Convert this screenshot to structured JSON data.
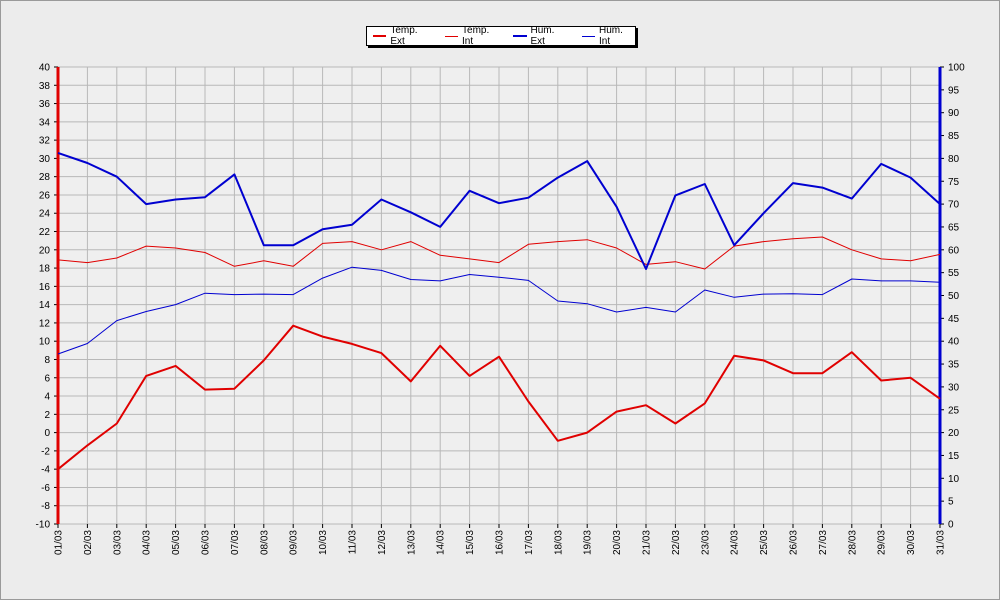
{
  "chart_data": {
    "type": "line",
    "categories": [
      "01/03",
      "02/03",
      "03/03",
      "04/03",
      "05/03",
      "06/03",
      "07/03",
      "08/03",
      "09/03",
      "10/03",
      "11/03",
      "12/03",
      "13/03",
      "14/03",
      "15/03",
      "16/03",
      "17/03",
      "18/03",
      "19/03",
      "20/03",
      "21/03",
      "22/03",
      "23/03",
      "24/03",
      "25/03",
      "26/03",
      "27/03",
      "28/03",
      "29/03",
      "30/03",
      "31/03"
    ],
    "ylim_left": [
      -10,
      40
    ],
    "ylim_right": [
      0,
      100
    ],
    "yticks_left": [
      -10,
      -8,
      -6,
      -4,
      -2,
      0,
      2,
      4,
      6,
      8,
      10,
      12,
      14,
      16,
      18,
      20,
      22,
      24,
      26,
      28,
      30,
      32,
      34,
      36,
      38,
      40
    ],
    "yticks_right": [
      0,
      5,
      10,
      15,
      20,
      25,
      30,
      35,
      40,
      45,
      50,
      55,
      60,
      65,
      70,
      75,
      80,
      85,
      90,
      95,
      100
    ],
    "grid": true,
    "legend_position": "top-center",
    "series": [
      {
        "name": "Temp. Ext",
        "axis": "left",
        "color": "#e00000",
        "width": 2,
        "values": [
          -4,
          -1.4,
          1,
          6.2,
          7.3,
          4.7,
          4.8,
          7.9,
          11.7,
          10.5,
          9.7,
          8.7,
          5.6,
          9.5,
          6.2,
          8.3,
          3.4,
          -0.9,
          0,
          2.3,
          3,
          1,
          3.2,
          8.4,
          7.9,
          6.5,
          6.5,
          8.8,
          5.7,
          6,
          3.7
        ]
      },
      {
        "name": "Temp. Int",
        "axis": "left",
        "color": "#e00000",
        "width": 1,
        "values": [
          18.9,
          18.6,
          19.1,
          20.4,
          20.2,
          19.7,
          18.2,
          18.8,
          18.2,
          20.7,
          20.9,
          20,
          20.9,
          19.4,
          19,
          18.6,
          20.6,
          20.9,
          21.1,
          20.2,
          18.4,
          18.7,
          17.9,
          20.4,
          20.9,
          21.2,
          21.4,
          20,
          19,
          18.8,
          19.5
        ]
      },
      {
        "name": "Hum. Ext",
        "axis": "right",
        "color": "#0000d0",
        "width": 2,
        "values": [
          81.2,
          79,
          76,
          70,
          71,
          71.5,
          76.5,
          61,
          61,
          64.5,
          65.5,
          71,
          68.2,
          65,
          72.9,
          70.2,
          71.4,
          75.8,
          79.4,
          69.4,
          55.8,
          71.9,
          74.4,
          61,
          68,
          74.6,
          73.6,
          71.2,
          78.8,
          75.8,
          70
        ]
      },
      {
        "name": "Hum. Int",
        "axis": "right",
        "color": "#0000d0",
        "width": 1,
        "values": [
          37.2,
          39.5,
          44.5,
          46.5,
          48,
          50.5,
          50.2,
          50.3,
          50.2,
          53.8,
          56.2,
          55.5,
          53.5,
          53.2,
          54.6,
          54,
          53.3,
          48.8,
          48.2,
          46.4,
          47.4,
          46.4,
          51.2,
          49.6,
          50.3,
          50.4,
          50.2,
          53.6,
          53.2,
          53.2,
          52.9
        ]
      }
    ]
  }
}
